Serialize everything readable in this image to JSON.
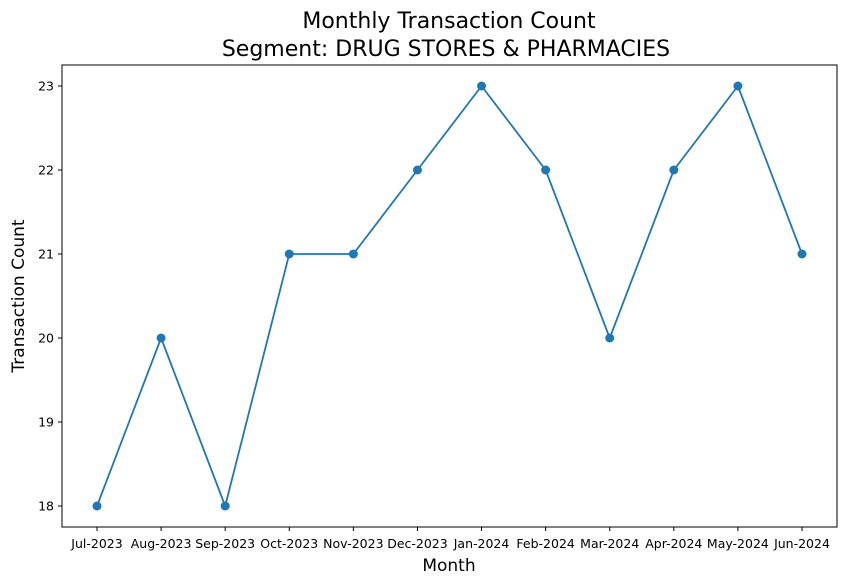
{
  "chart_data": {
    "type": "line",
    "title": "Monthly Transaction Count",
    "subtitle": "Segment: DRUG STORES & PHARMACIES",
    "xlabel": "Month",
    "ylabel": "Transaction Count",
    "categories": [
      "Jul-2023",
      "Aug-2023",
      "Sep-2023",
      "Oct-2023",
      "Nov-2023",
      "Dec-2023",
      "Jan-2024",
      "Feb-2024",
      "Mar-2024",
      "Apr-2024",
      "May-2024",
      "Jun-2024"
    ],
    "series": [
      {
        "values": [
          18,
          20,
          18,
          21,
          21,
          22,
          23,
          22,
          20,
          22,
          23,
          21
        ],
        "color": "#1f77b4",
        "marker": "circle"
      }
    ],
    "yticks": [
      18,
      19,
      20,
      21,
      22,
      23
    ],
    "ylim": [
      17.75,
      23.25
    ],
    "grid": false,
    "legend": false
  }
}
